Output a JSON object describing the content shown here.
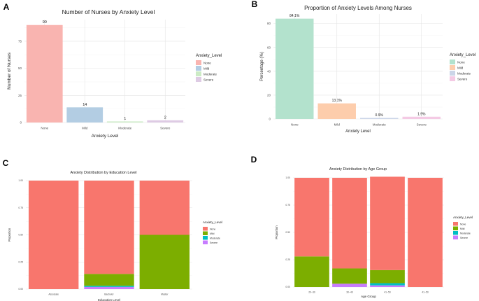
{
  "panel_labels": [
    "A",
    "B",
    "C",
    "D"
  ],
  "chart_data": [
    {
      "id": "A",
      "type": "bar",
      "title": "Number of Nurses by Anxiety Level",
      "xlabel": "Anxiety Level",
      "ylabel": "Number of Nurses",
      "categories": [
        "None",
        "Mild",
        "Moderate",
        "Severe"
      ],
      "values": [
        90,
        14,
        1,
        2
      ],
      "value_labels": [
        "90",
        "14",
        "1",
        "2"
      ],
      "ylim": [
        0,
        95
      ],
      "yticks": [
        0,
        25,
        50,
        75
      ],
      "yticklabels": [
        "0",
        "25",
        "50",
        "75"
      ],
      "colors": [
        "#F9B4B0",
        "#B3CDE3",
        "#CCEBC5",
        "#DECBE4"
      ],
      "legend": {
        "title": "Anxiety_Level",
        "labels": [
          "None",
          "Mild",
          "Moderate",
          "Severe"
        ],
        "position": "right"
      }
    },
    {
      "id": "B",
      "type": "bar",
      "title": "Proportion of Anxiety Levels Among Nurses",
      "xlabel": "Anxiety Level",
      "ylabel": "Percentage (%)",
      "categories": [
        "None",
        "Mild",
        "Moderate",
        "Severe"
      ],
      "values": [
        84.1,
        13.1,
        0.9,
        1.9
      ],
      "value_labels": [
        "84.1%",
        "13.1%",
        "0.9%",
        "1.9%"
      ],
      "ylim": [
        0,
        88
      ],
      "yticks": [
        0,
        20,
        40,
        60,
        80
      ],
      "yticklabels": [
        "0",
        "20",
        "40",
        "60",
        "80"
      ],
      "colors": [
        "#B3E2CD",
        "#FDCDAC",
        "#CBD5E8",
        "#F4CAE4"
      ],
      "legend": {
        "title": "Anxiety_Level",
        "labels": [
          "None",
          "Mild",
          "Moderate",
          "Severe"
        ],
        "position": "right"
      }
    },
    {
      "id": "C",
      "type": "stacked_bar",
      "title": "Anxiety Distribution by Education Level",
      "xlabel": "Education Level",
      "ylabel": "Proportion",
      "categories": [
        "Associate",
        "Bachelor",
        "Master"
      ],
      "series": [
        {
          "name": "None",
          "values": [
            1.0,
            0.86,
            0.5
          ]
        },
        {
          "name": "Mild",
          "values": [
            0.0,
            0.11,
            0.5
          ]
        },
        {
          "name": "Moderate",
          "values": [
            0.0,
            0.01,
            0.0
          ]
        },
        {
          "name": "Severe",
          "values": [
            0.0,
            0.02,
            0.0
          ]
        }
      ],
      "ylim": [
        0,
        1
      ],
      "yticks": [
        0,
        0.25,
        0.5,
        0.75,
        1.0
      ],
      "yticklabels": [
        "0.00",
        "0.25",
        "0.50",
        "0.75",
        "1.00"
      ],
      "colors": [
        "#F8766D",
        "#7CAE00",
        "#00BFC4",
        "#C77CFF"
      ],
      "legend": {
        "title": "Anxiety_Level",
        "labels": [
          "None",
          "Mild",
          "Moderate",
          "Severe"
        ],
        "position": "right"
      }
    },
    {
      "id": "D",
      "type": "stacked_bar",
      "title": "Anxiety Distribution by Age Group",
      "xlabel": "Age Group",
      "ylabel": "Proportion",
      "categories": [
        "20~30",
        "30~40",
        "41~50",
        "41~50"
      ],
      "series": [
        {
          "name": "None",
          "values": [
            0.72,
            0.83,
            0.855,
            1.0
          ]
        },
        {
          "name": "Mild",
          "values": [
            0.28,
            0.14,
            0.12,
            0.0
          ]
        },
        {
          "name": "Moderate",
          "values": [
            0.0,
            0.0,
            0.02,
            0.0
          ]
        },
        {
          "name": "Severe",
          "values": [
            0.0,
            0.03,
            0.015,
            0.0
          ]
        }
      ],
      "ylim": [
        0,
        1
      ],
      "yticks": [
        0,
        0.25,
        0.5,
        0.75,
        1.0
      ],
      "yticklabels": [
        "0.00",
        "0.25",
        "0.50",
        "0.75",
        "1.00"
      ],
      "colors": [
        "#F8766D",
        "#7CAE00",
        "#00BFC4",
        "#C77CFF"
      ],
      "legend": {
        "title": "Anxiety_Level",
        "labels": [
          "None",
          "Mild",
          "Moderate",
          "Severe"
        ],
        "position": "right"
      }
    }
  ]
}
